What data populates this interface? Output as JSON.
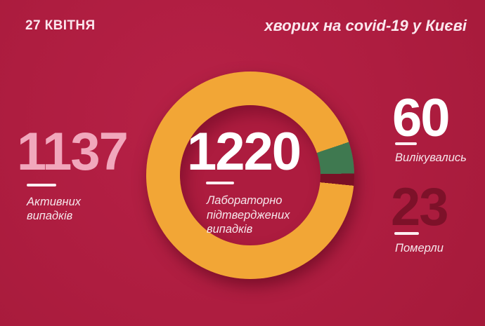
{
  "header": {
    "date": "27 КВІТНЯ",
    "title": "хворих на covid-19 у Києві"
  },
  "stats": {
    "active": {
      "value": "1137",
      "label_lines": [
        "Активних",
        "випадків"
      ]
    },
    "confirmed": {
      "value": "1220",
      "label_lines": [
        "Лабораторно",
        "підтверджених",
        "випадків"
      ]
    },
    "recovered": {
      "value": "60",
      "label_lines": [
        "Вилікувались"
      ]
    },
    "deaths": {
      "value": "23",
      "label_lines": [
        "Померли"
      ]
    }
  },
  "colors": {
    "background": "#ae1d40",
    "ring_active": "#f2a636",
    "ring_recovered": "#3f7950",
    "ring_deaths": "#7a1026",
    "number_pink": "#f1a7bc",
    "number_white": "#ffffff",
    "number_dark_red": "#7d1129",
    "label_text": "#f6e7ec"
  },
  "chart_data": {
    "type": "pie",
    "subtype": "donut",
    "title": "хворих на covid-19 у Києві",
    "date": "27 КВІТНЯ",
    "total": 1220,
    "center_value": "1220",
    "center_label": "Лабораторно підтверджених випадків",
    "series": [
      {
        "name": "Активних випадків",
        "value": 1137,
        "color": "#f2a636"
      },
      {
        "name": "Вилікувались",
        "value": 60,
        "color": "#3f7950"
      },
      {
        "name": "Померли",
        "value": 23,
        "color": "#7a1026"
      }
    ],
    "start_angle_deg": 71.3,
    "legend_position": "none",
    "grid": false
  }
}
